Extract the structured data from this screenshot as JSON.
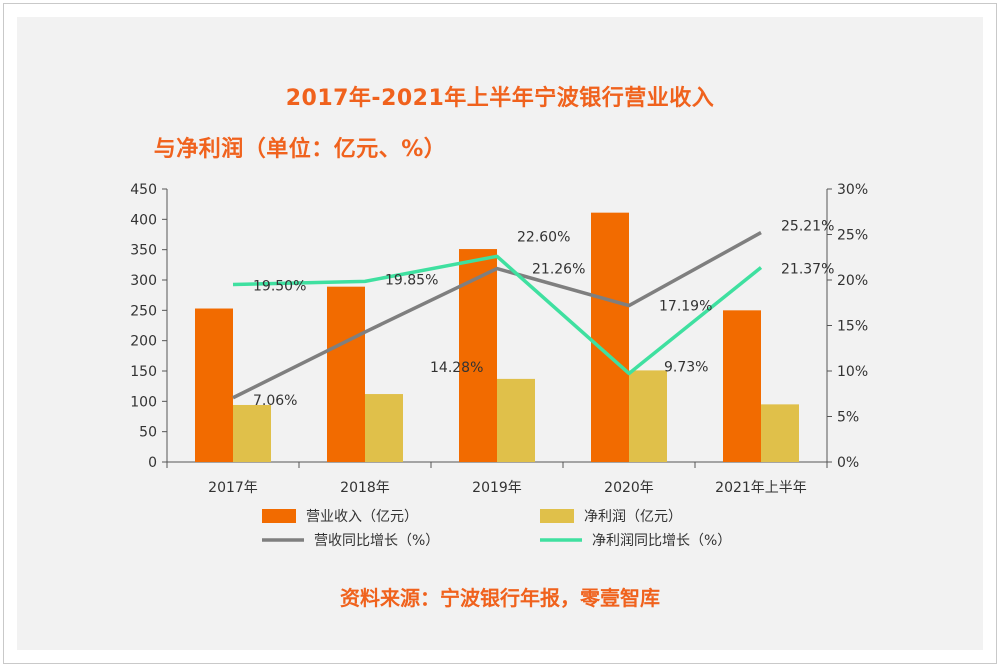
{
  "title_line1": "2017年-2021年上半年宁波银行营业收入",
  "title_line2": "与净利润（单位：亿元、%）",
  "source": "资料来源：宁波银行年报，零壹智库",
  "chart_data": {
    "type": "bar",
    "categories": [
      "2017年",
      "2018年",
      "2019年",
      "2020年",
      "2021年上半年"
    ],
    "series": [
      {
        "name": "营业收入（亿元）",
        "kind": "bar",
        "axis": "left",
        "color": "#f26b00",
        "values": [
          253,
          289,
          351,
          411,
          250
        ]
      },
      {
        "name": "净利润（亿元）",
        "kind": "bar",
        "axis": "left",
        "color": "#e0c04a",
        "values": [
          94,
          112,
          137,
          151,
          95
        ]
      },
      {
        "name": "营收同比增长（%）",
        "kind": "line",
        "axis": "right",
        "color": "#7f7f7f",
        "values": [
          7.06,
          14.28,
          21.26,
          17.19,
          25.21
        ],
        "labels": [
          "7.06%",
          "14.28%",
          "21.26%",
          "17.19%",
          "25.21%"
        ]
      },
      {
        "name": "净利润同比增长（%）",
        "kind": "line",
        "axis": "right",
        "color": "#3fe0a0",
        "values": [
          19.5,
          19.85,
          22.6,
          9.73,
          21.37
        ],
        "labels": [
          "19.50%",
          "19.85%",
          "22.60%",
          "9.73%",
          "21.37%"
        ]
      }
    ],
    "y_left": {
      "min": 0,
      "max": 450,
      "ticks": [
        "0",
        "50",
        "100",
        "150",
        "200",
        "250",
        "300",
        "350",
        "400",
        "450"
      ]
    },
    "y_right": {
      "min": 0,
      "max": 30,
      "ticks": [
        "0%",
        "5%",
        "10%",
        "15%",
        "20%",
        "25%",
        "30%"
      ]
    },
    "legend_position": "bottom",
    "grid": false
  }
}
